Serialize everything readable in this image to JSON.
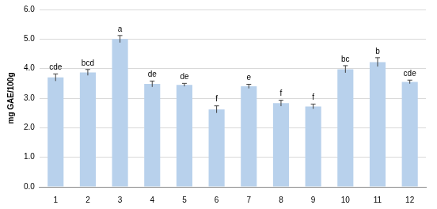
{
  "chart_data": {
    "type": "bar",
    "y_label": "mg GAE/100g",
    "categories": [
      "1",
      "2",
      "3",
      "4",
      "5",
      "6",
      "7",
      "8",
      "9",
      "10",
      "11",
      "12"
    ],
    "values": [
      3.7,
      3.87,
      5.0,
      3.48,
      3.45,
      2.62,
      3.4,
      2.83,
      2.72,
      3.98,
      4.22,
      3.55
    ],
    "errors": [
      0.12,
      0.1,
      0.12,
      0.1,
      0.05,
      0.12,
      0.07,
      0.1,
      0.08,
      0.12,
      0.15,
      0.06
    ],
    "annotations": [
      "cde",
      "bcd",
      "a",
      "de",
      "de",
      "f",
      "e",
      "f",
      "f",
      "bc",
      "b",
      "cde"
    ],
    "color": "#b8d1ec",
    "ylim": [
      0,
      6
    ],
    "yticks": [
      {
        "value": 0,
        "label": "0.0"
      },
      {
        "value": 1,
        "label": "1.0"
      },
      {
        "value": 2,
        "label": "2.0"
      },
      {
        "value": 3,
        "label": "3.0"
      },
      {
        "value": 4,
        "label": "4.0"
      },
      {
        "value": 5,
        "label": "5.0"
      },
      {
        "value": 6,
        "label": "6.0"
      }
    ],
    "grid": true
  }
}
